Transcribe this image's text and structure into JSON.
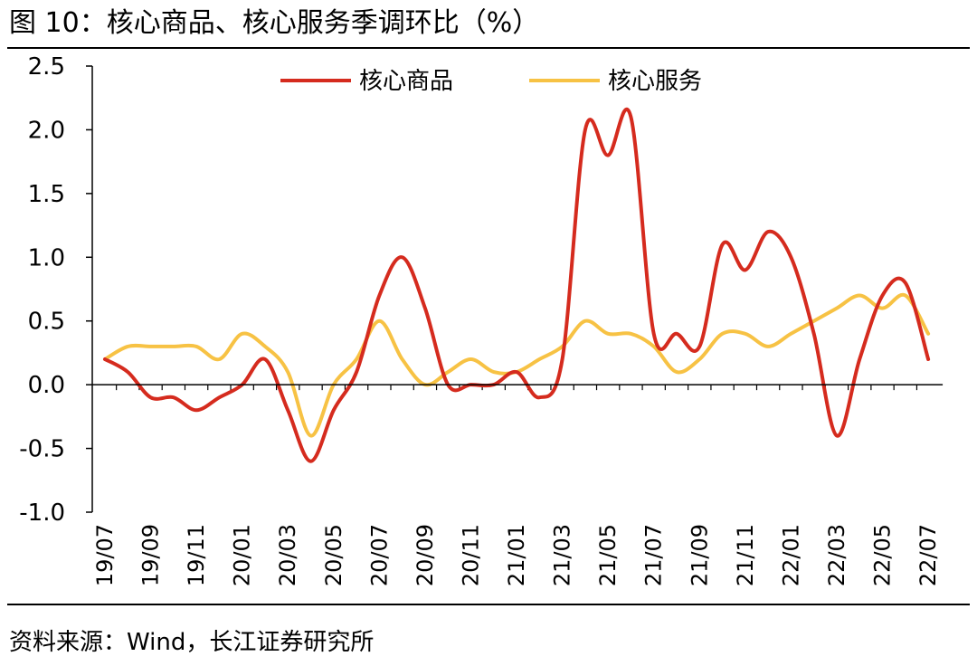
{
  "header": {
    "figure_no": "图 10：",
    "title": "核心商品、核心服务季调环比（%）"
  },
  "footer": {
    "source": "资料来源：Wind，长江证券研究所"
  },
  "colors": {
    "goods": "#d52b1e",
    "services": "#f7c244",
    "axis": "#000000"
  },
  "chart_data": {
    "type": "line",
    "title": "核心商品、核心服务季调环比（%）",
    "xlabel": "",
    "ylabel": "",
    "ylim": [
      -1.0,
      2.5
    ],
    "yticks": [
      "2.5",
      "2.0",
      "1.5",
      "1.0",
      "0.5",
      "0.0",
      "-0.5",
      "-1.0"
    ],
    "ytick_values": [
      2.5,
      2.0,
      1.5,
      1.0,
      0.5,
      0.0,
      -0.5,
      -1.0
    ],
    "grid": false,
    "legend_position": "top",
    "tick_labels": [
      "19/07",
      "19/09",
      "19/11",
      "20/01",
      "20/03",
      "20/05",
      "20/07",
      "20/09",
      "20/11",
      "21/01",
      "21/03",
      "21/05",
      "21/07",
      "21/09",
      "21/11",
      "22/01",
      "22/03",
      "22/05",
      "22/07"
    ],
    "x": [
      "19/07",
      "19/08",
      "19/09",
      "19/10",
      "19/11",
      "19/12",
      "20/01",
      "20/02",
      "20/03",
      "20/04",
      "20/05",
      "20/06",
      "20/07",
      "20/08",
      "20/09",
      "20/10",
      "20/11",
      "20/12",
      "21/01",
      "21/02",
      "21/03",
      "21/04",
      "21/05",
      "21/06",
      "21/07",
      "21/08",
      "21/09",
      "21/10",
      "21/11",
      "21/12",
      "22/01",
      "22/02",
      "22/03",
      "22/04",
      "22/05",
      "22/06",
      "22/07"
    ],
    "series": [
      {
        "name": "核心商品",
        "values": [
          0.2,
          0.1,
          -0.1,
          -0.1,
          -0.2,
          -0.1,
          0.0,
          0.2,
          -0.2,
          -0.6,
          -0.2,
          0.1,
          0.7,
          1.0,
          0.6,
          0.0,
          0.0,
          0.0,
          0.1,
          -0.1,
          0.2,
          2.0,
          1.8,
          2.1,
          0.4,
          0.4,
          0.3,
          1.1,
          0.9,
          1.2,
          1.0,
          0.4,
          -0.4,
          0.2,
          0.7,
          0.8,
          0.2
        ]
      },
      {
        "name": "核心服务",
        "values": [
          0.2,
          0.3,
          0.3,
          0.3,
          0.3,
          0.2,
          0.4,
          0.3,
          0.1,
          -0.4,
          0.0,
          0.2,
          0.5,
          0.2,
          0.0,
          0.1,
          0.2,
          0.1,
          0.1,
          0.2,
          0.3,
          0.5,
          0.4,
          0.4,
          0.3,
          0.1,
          0.2,
          0.4,
          0.4,
          0.3,
          0.4,
          0.5,
          0.6,
          0.7,
          0.6,
          0.7,
          0.4
        ]
      }
    ]
  }
}
